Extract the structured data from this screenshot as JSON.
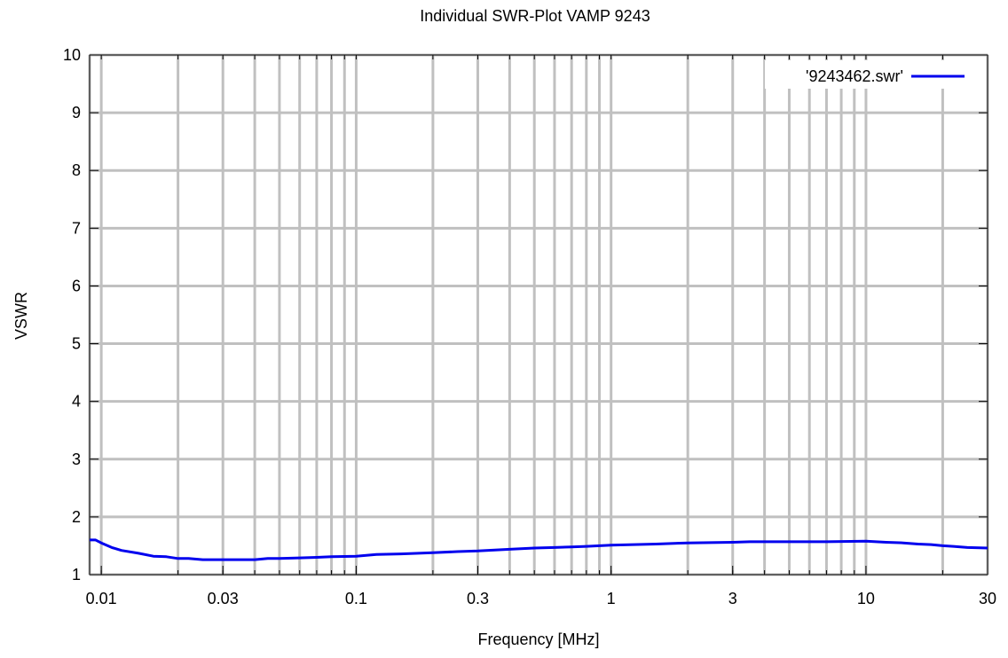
{
  "chart_data": {
    "type": "line",
    "title": "Individual SWR-Plot VAMP 9243",
    "xlabel": "Frequency [MHz]",
    "ylabel": "VSWR",
    "xscale": "log",
    "xlim": [
      0.009,
      30
    ],
    "ylim": [
      1,
      10
    ],
    "grid": true,
    "legend_position": "top-right",
    "xticks": [
      {
        "value": 0.01,
        "label": "0.01"
      },
      {
        "value": 0.03,
        "label": "0.03"
      },
      {
        "value": 0.1,
        "label": "0.1"
      },
      {
        "value": 0.3,
        "label": "0.3"
      },
      {
        "value": 1,
        "label": "1"
      },
      {
        "value": 3,
        "label": "3"
      },
      {
        "value": 10,
        "label": "10"
      },
      {
        "value": 30,
        "label": "30"
      }
    ],
    "yticks": [
      {
        "value": 1,
        "label": "1"
      },
      {
        "value": 2,
        "label": "2"
      },
      {
        "value": 3,
        "label": "3"
      },
      {
        "value": 4,
        "label": "4"
      },
      {
        "value": 5,
        "label": "5"
      },
      {
        "value": 6,
        "label": "6"
      },
      {
        "value": 7,
        "label": "7"
      },
      {
        "value": 8,
        "label": "8"
      },
      {
        "value": 9,
        "label": "9"
      },
      {
        "value": 10,
        "label": "10"
      }
    ],
    "series": [
      {
        "name": "'9243462.swr'",
        "color": "#0000ee",
        "x": [
          0.009,
          0.0095,
          0.01,
          0.011,
          0.012,
          0.014,
          0.016,
          0.018,
          0.02,
          0.022,
          0.025,
          0.03,
          0.035,
          0.04,
          0.045,
          0.05,
          0.06,
          0.07,
          0.08,
          0.1,
          0.12,
          0.15,
          0.2,
          0.25,
          0.3,
          0.4,
          0.5,
          0.6,
          0.7,
          0.8,
          1.0,
          1.5,
          2.0,
          3.0,
          3.5,
          5.0,
          7.0,
          10.0,
          12.0,
          14.0,
          16.0,
          18.0,
          20.0,
          22.0,
          25.0,
          30.0
        ],
        "y": [
          1.6,
          1.6,
          1.55,
          1.47,
          1.42,
          1.37,
          1.32,
          1.31,
          1.28,
          1.28,
          1.26,
          1.26,
          1.26,
          1.26,
          1.28,
          1.28,
          1.29,
          1.3,
          1.31,
          1.32,
          1.35,
          1.36,
          1.38,
          1.4,
          1.41,
          1.44,
          1.46,
          1.47,
          1.48,
          1.49,
          1.51,
          1.53,
          1.55,
          1.56,
          1.57,
          1.57,
          1.57,
          1.58,
          1.56,
          1.55,
          1.53,
          1.52,
          1.5,
          1.49,
          1.47,
          1.46
        ]
      }
    ]
  }
}
